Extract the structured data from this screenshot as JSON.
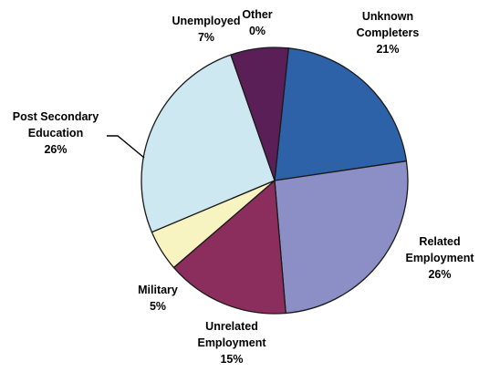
{
  "chart_data": {
    "type": "pie",
    "title": "",
    "slices": [
      {
        "label_lines": [
          "Unknown",
          "Completers"
        ],
        "pct_text": "21%",
        "value": 21,
        "color": "#2e62a8"
      },
      {
        "label_lines": [
          "Related",
          "Employment"
        ],
        "pct_text": "26%",
        "value": 26,
        "color": "#8b8fc6"
      },
      {
        "label_lines": [
          "Unrelated",
          "Employment"
        ],
        "pct_text": "15%",
        "value": 15,
        "color": "#8b2e5e"
      },
      {
        "label_lines": [
          "Military"
        ],
        "pct_text": "5%",
        "value": 5,
        "color": "#f7f4c2"
      },
      {
        "label_lines": [
          "Post Secondary",
          "Education"
        ],
        "pct_text": "26%",
        "value": 26,
        "color": "#cde8f0"
      },
      {
        "label_lines": [
          "Unemployed"
        ],
        "pct_text": "7%",
        "value": 7,
        "color": "#5b1f57"
      },
      {
        "label_lines": [
          "Other"
        ],
        "pct_text": "0%",
        "value": 0,
        "color": "#3a2a5a"
      }
    ]
  }
}
